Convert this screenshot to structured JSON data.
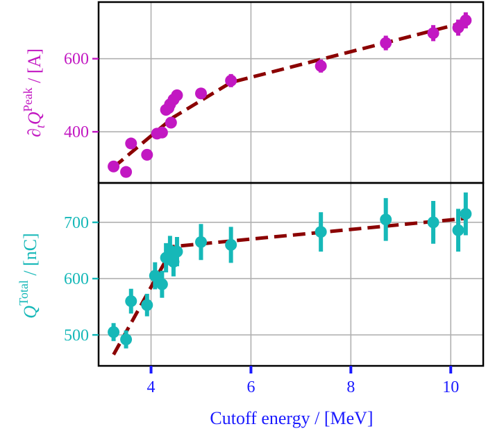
{
  "chart_data": [
    {
      "type": "scatter",
      "title": "",
      "xlabel": "Cutoff energy / [MeV]",
      "ylabel": {
        "prefix": "∂",
        "sub": "t",
        "main": "Q",
        "sup": "Peak",
        "unit": " / [A]"
      },
      "xlim": [
        2.95,
        10.65
      ],
      "ylim": [
        260,
        755
      ],
      "y_ticks": [
        400,
        600
      ],
      "x_ticks": [
        4,
        6,
        8,
        10
      ],
      "grid": true,
      "color": "#c218c2",
      "fit_color": "#8b0000",
      "series": [
        {
          "x": [
            3.25,
            3.5,
            3.6,
            3.92,
            4.12,
            4.22,
            4.3,
            4.35,
            4.38,
            4.4,
            4.45,
            4.52,
            5.0,
            5.6,
            7.4,
            8.7,
            9.65,
            10.15,
            10.3
          ],
          "y": [
            305,
            290,
            368,
            337,
            395,
            398,
            460,
            465,
            475,
            425,
            488,
            500,
            505,
            540,
            580,
            643,
            670,
            685,
            705
          ],
          "err": [
            8,
            6,
            8,
            8,
            10,
            10,
            14,
            14,
            14,
            14,
            14,
            14,
            14,
            18,
            18,
            20,
            22,
            22,
            22
          ]
        }
      ],
      "fit": {
        "x": [
          3.25,
          4.45,
          5.6,
          10.3
        ],
        "y": [
          303,
          440,
          535,
          700
        ]
      }
    },
    {
      "type": "scatter",
      "title": "",
      "xlabel": "Cutoff energy / [MeV]",
      "ylabel": {
        "main": "Q",
        "sup": "Total",
        "unit": " / [nC]"
      },
      "xlim": [
        2.95,
        10.65
      ],
      "ylim": [
        445,
        770
      ],
      "y_ticks": [
        500,
        600,
        700
      ],
      "x_ticks": [
        4,
        6,
        8,
        10
      ],
      "grid": true,
      "color": "#16b8b8",
      "fit_color": "#8b0000",
      "series": [
        {
          "x": [
            3.25,
            3.5,
            3.6,
            3.92,
            4.08,
            4.22,
            4.3,
            4.38,
            4.45,
            4.52,
            5.0,
            5.6,
            7.4,
            8.7,
            9.65,
            10.15,
            10.3
          ],
          "y": [
            505,
            492,
            560,
            553,
            605,
            590,
            637,
            650,
            630,
            648,
            665,
            660,
            683,
            705,
            700,
            686,
            715
          ],
          "err": [
            16,
            16,
            22,
            20,
            24,
            24,
            26,
            26,
            26,
            26,
            32,
            32,
            35,
            38,
            38,
            38,
            38
          ]
        }
      ],
      "fit": {
        "x": [
          3.25,
          4.45,
          10.3
        ],
        "y": [
          465,
          657,
          707
        ]
      }
    }
  ]
}
